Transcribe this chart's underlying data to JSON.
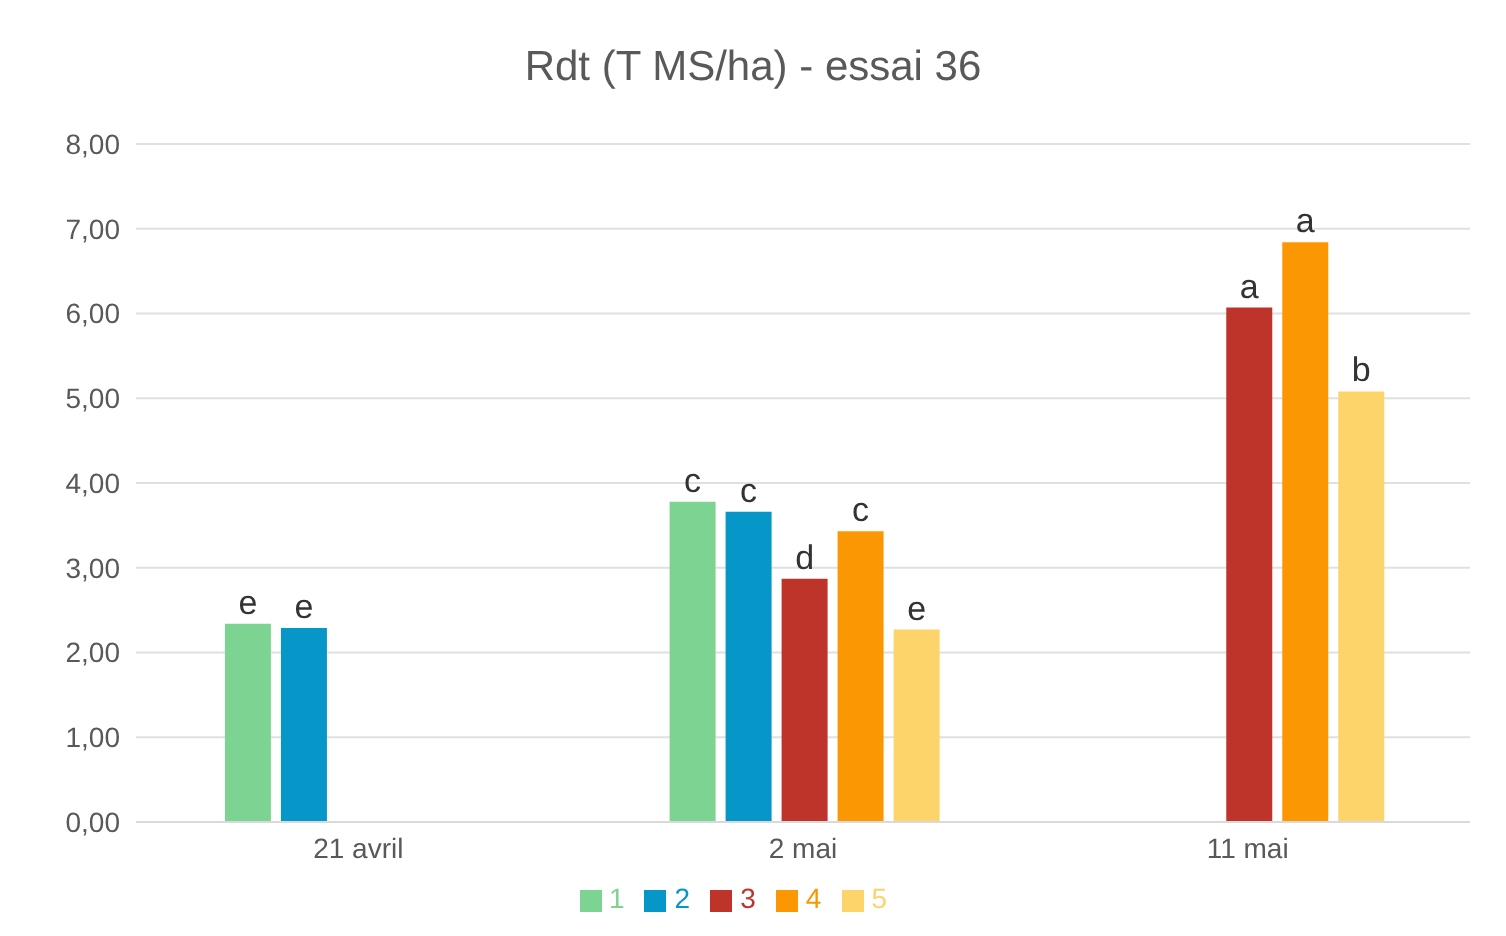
{
  "chart_data": {
    "type": "bar",
    "title": "Rdt (T MS/ha) - essai 36",
    "categories": [
      "21 avril",
      "2 mai",
      "11 mai"
    ],
    "series": [
      {
        "name": "1",
        "color": "#7dd492",
        "values": [
          2.34,
          3.78,
          null
        ],
        "value_labels": [
          "e",
          "c",
          null
        ]
      },
      {
        "name": "2",
        "color": "#0796c8",
        "values": [
          2.29,
          3.66,
          null
        ],
        "value_labels": [
          "e",
          "c",
          null
        ]
      },
      {
        "name": "3",
        "color": "#be342b",
        "values": [
          null,
          2.87,
          6.07
        ],
        "value_labels": [
          null,
          "d",
          "a"
        ]
      },
      {
        "name": "4",
        "color": "#fb9703",
        "values": [
          null,
          3.43,
          6.84
        ],
        "value_labels": [
          null,
          "c",
          "a"
        ]
      },
      {
        "name": "5",
        "color": "#fdd46a",
        "values": [
          null,
          2.27,
          5.08
        ],
        "value_labels": [
          null,
          "e",
          "b"
        ]
      }
    ],
    "ylim": [
      0,
      8
    ],
    "yticks": [
      {
        "value": 0,
        "label": "0,00"
      },
      {
        "value": 1,
        "label": "1,00"
      },
      {
        "value": 2,
        "label": "2,00"
      },
      {
        "value": 3,
        "label": "3,00"
      },
      {
        "value": 4,
        "label": "4,00"
      },
      {
        "value": 5,
        "label": "5,00"
      },
      {
        "value": 6,
        "label": "6,00"
      },
      {
        "value": 7,
        "label": "7,00"
      },
      {
        "value": 8,
        "label": "8,00"
      }
    ],
    "grid": "y",
    "legend": "bottom"
  }
}
